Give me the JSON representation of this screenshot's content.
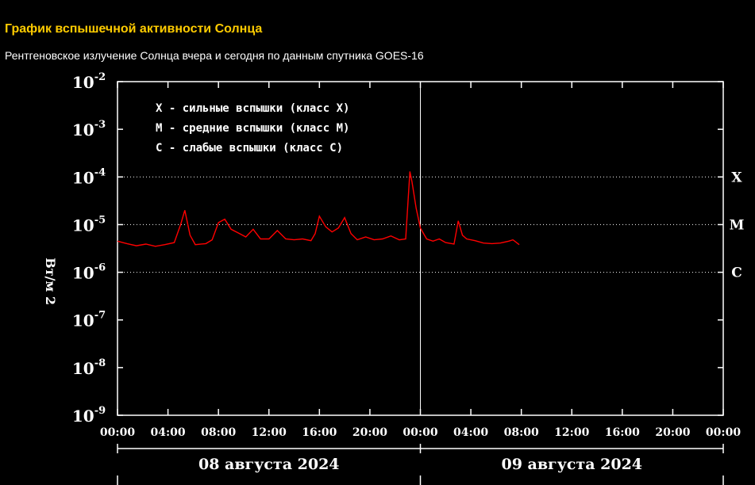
{
  "header": {
    "title": "График вспышечной активности Солнца",
    "subtitle": "Рентгеновское излучение Солнца вчера и сегодня по данным спутника GOES-16"
  },
  "colors": {
    "title": "#ffcc00",
    "series": "#ff0000",
    "background": "#000000",
    "axes": "#ffffff"
  },
  "chart_data": {
    "type": "line",
    "ylabel": "Вт/м 2",
    "y_scale": "log",
    "ylim": [
      1e-09,
      0.01
    ],
    "y_ticks": [
      {
        "base": "10",
        "exp": "-2",
        "value": 0.01
      },
      {
        "base": "10",
        "exp": "-3",
        "value": 0.001
      },
      {
        "base": "10",
        "exp": "-4",
        "value": 0.0001
      },
      {
        "base": "10",
        "exp": "-5",
        "value": 1e-05
      },
      {
        "base": "10",
        "exp": "-6",
        "value": 1e-06
      },
      {
        "base": "10",
        "exp": "-7",
        "value": 1e-07
      },
      {
        "base": "10",
        "exp": "-8",
        "value": 1e-08
      },
      {
        "base": "10",
        "exp": "-9",
        "value": 1e-09
      }
    ],
    "xlim": [
      "2024-08-08 00:00",
      "2024-08-10 00:00"
    ],
    "x_ticks": [
      "00:00",
      "04:00",
      "08:00",
      "12:00",
      "16:00",
      "20:00",
      "00:00",
      "04:00",
      "08:00",
      "12:00",
      "16:00",
      "20:00",
      "00:00"
    ],
    "dates": [
      "08 августа 2024",
      "09 августа 2024"
    ],
    "class_lines": [
      {
        "label": "X",
        "value": 0.0001
      },
      {
        "label": "M",
        "value": 1e-05
      },
      {
        "label": "C",
        "value": 1e-06
      }
    ],
    "legend": [
      "X - сильные вспышки (класс X)",
      "M - средние вспышки (класс M)",
      "C - слабые вспышки (класс C)"
    ],
    "grid": "dotted lines at X, M, C levels",
    "series": [
      {
        "x": [
          "2024-08-08 00:00",
          "2024-08-08 00:45",
          "2024-08-08 01:30",
          "2024-08-08 02:15",
          "2024-08-08 03:00",
          "2024-08-08 03:45",
          "2024-08-08 04:30",
          "2024-08-08 05:00",
          "2024-08-08 05:20",
          "2024-08-08 05:45",
          "2024-08-08 06:10",
          "2024-08-08 07:00",
          "2024-08-08 07:30",
          "2024-08-08 08:00",
          "2024-08-08 08:30",
          "2024-08-08 09:00",
          "2024-08-08 09:40",
          "2024-08-08 10:10",
          "2024-08-08 10:45",
          "2024-08-08 11:20",
          "2024-08-08 12:00",
          "2024-08-08 12:40",
          "2024-08-08 13:20",
          "2024-08-08 14:00",
          "2024-08-08 14:40",
          "2024-08-08 15:20",
          "2024-08-08 15:40",
          "2024-08-08 16:00",
          "2024-08-08 16:30",
          "2024-08-08 17:00",
          "2024-08-08 17:30",
          "2024-08-08 18:00",
          "2024-08-08 18:30",
          "2024-08-08 19:00",
          "2024-08-08 19:40",
          "2024-08-08 20:20",
          "2024-08-08 21:00",
          "2024-08-08 21:40",
          "2024-08-08 22:20",
          "2024-08-08 22:50",
          "2024-08-08 23:10",
          "2024-08-08 23:20",
          "2024-08-08 23:40",
          "2024-08-09 00:00",
          "2024-08-09 00:30",
          "2024-08-09 01:00",
          "2024-08-09 01:30",
          "2024-08-09 02:00",
          "2024-08-09 02:40",
          "2024-08-09 03:00",
          "2024-08-09 03:20",
          "2024-08-09 03:40",
          "2024-08-09 04:20",
          "2024-08-09 05:00",
          "2024-08-09 05:40",
          "2024-08-09 06:20",
          "2024-08-09 07:00",
          "2024-08-09 07:20",
          "2024-08-09 07:50"
        ],
        "values": [
          4.5e-06,
          4e-06,
          3.6e-06,
          3.9e-06,
          3.5e-06,
          3.8e-06,
          4.2e-06,
          1e-05,
          2e-05,
          6e-06,
          3.8e-06,
          4e-06,
          4.8e-06,
          1.1e-05,
          1.3e-05,
          8e-06,
          6.5e-06,
          5.5e-06,
          8e-06,
          5e-06,
          5e-06,
          7.5e-06,
          5e-06,
          4.8e-06,
          5e-06,
          4.6e-06,
          6.5e-06,
          1.5e-05,
          9e-06,
          7e-06,
          8.5e-06,
          1.4e-05,
          6.5e-06,
          4.8e-06,
          5.5e-06,
          4.8e-06,
          5e-06,
          5.8e-06,
          4.8e-06,
          5e-06,
          0.00013,
          8e-05,
          2.2e-05,
          8.5e-06,
          5e-06,
          4.5e-06,
          5e-06,
          4.2e-06,
          3.9e-06,
          1.2e-05,
          6e-06,
          5e-06,
          4.6e-06,
          4.1e-06,
          4e-06,
          4.1e-06,
          4.5e-06,
          4.8e-06,
          3.8e-06
        ]
      }
    ]
  }
}
